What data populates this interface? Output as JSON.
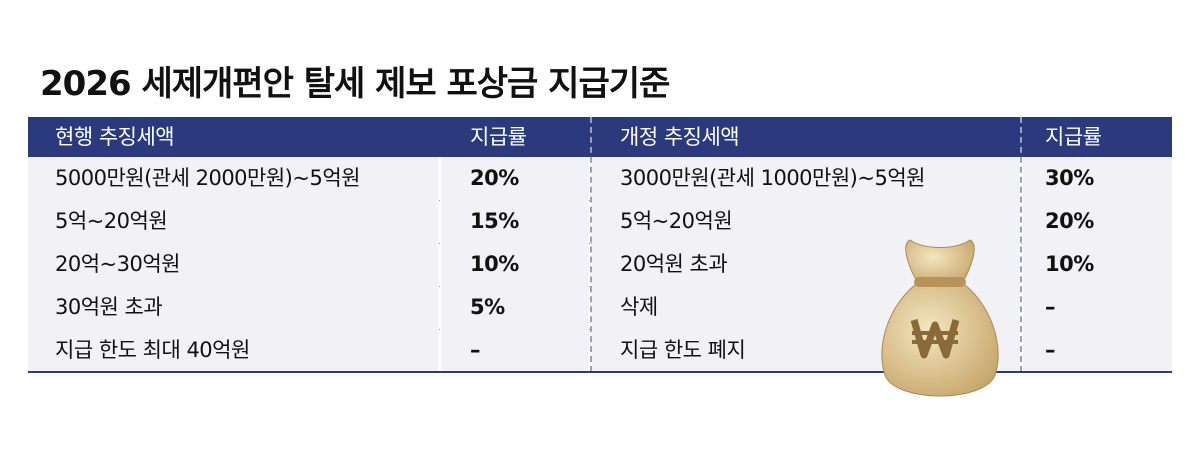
{
  "title": "2026 세제개편안 탈세 제보 포상금 지급기준",
  "table": {
    "header": [
      "현행 추징세액",
      "지급률",
      "개정 추징세액",
      "지급률"
    ],
    "rows": [
      [
        "5000만원(관세 2000만원)~5억원",
        "20%",
        "3000만원(관세 1000만원)~5억원",
        "30%"
      ],
      [
        "5억~20억원",
        "15%",
        "5억~20억원",
        "20%"
      ],
      [
        "20억~30억원",
        "10%",
        "20억원 초과",
        "10%"
      ],
      [
        "30억원 초과",
        "5%",
        "삭제",
        "–"
      ],
      [
        "지급 한도 최대 40억원",
        "–",
        "지급 한도 폐지",
        "–"
      ]
    ]
  }
}
